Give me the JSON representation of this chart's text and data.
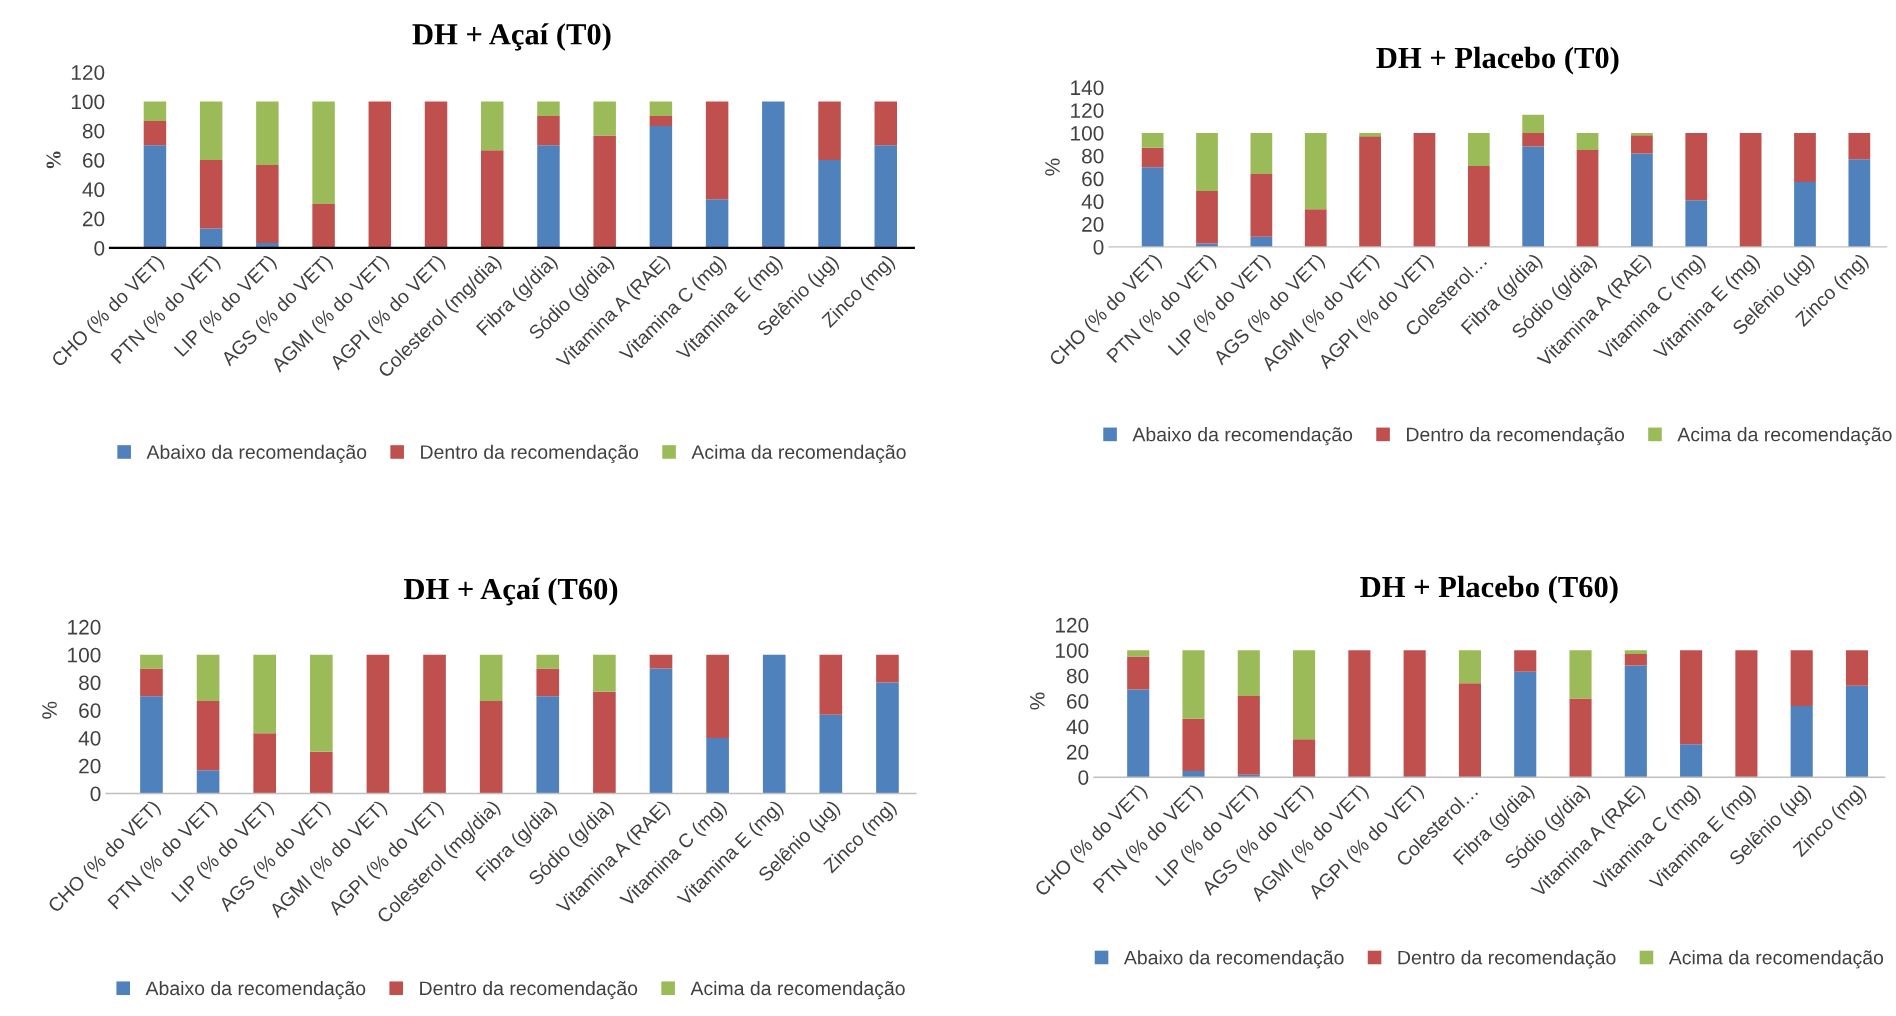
{
  "chart_data": [
    {
      "type": "bar",
      "stacked": true,
      "title": "DH + Açaí (T0)",
      "ylabel": "%",
      "legend": "bottom",
      "grid": false,
      "ylim": [
        0,
        120
      ],
      "yticks": [
        0,
        20,
        40,
        60,
        80,
        100,
        120
      ],
      "categories": [
        "CHO (% do VET)",
        "PTN (% do VET)",
        "LIP (% do VET)",
        "AGS (% do VET)",
        "AGMI (% do VET)",
        "AGPI (% do VET)",
        "Colesterol (mg/dia)",
        "Fibra (g/dia)",
        "Sódio (g/dia)",
        "Vitamina A (RAE)",
        "Vitamina C (mg)",
        "Vitamina E (mg)",
        "Selênio (µg)",
        "Zinco (mg)"
      ],
      "series": [
        {
          "name": "Abaixo da recomendação",
          "color": "#4f81bd",
          "values": [
            70,
            13.3,
            3.3,
            0,
            0,
            0,
            0,
            70,
            0,
            83.3,
            33.3,
            100,
            60,
            70
          ]
        },
        {
          "name": "Dentro da recomendação",
          "color": "#c0504d",
          "values": [
            16.7,
            46.7,
            53.3,
            30,
            100,
            100,
            66.7,
            20,
            76.7,
            6.7,
            66.7,
            0,
            40,
            30
          ]
        },
        {
          "name": "Acima da recomendação",
          "color": "#9bbb59",
          "values": [
            13.3,
            40,
            43.3,
            70,
            0,
            0,
            33.3,
            10,
            23.3,
            10,
            0,
            0,
            0,
            0
          ]
        }
      ]
    },
    {
      "type": "bar",
      "stacked": true,
      "title": "DH + Placebo (T0)",
      "ylabel": "%",
      "legend": "bottom",
      "grid": false,
      "ylim": [
        0,
        140
      ],
      "yticks": [
        0,
        20,
        40,
        60,
        80,
        100,
        120,
        140
      ],
      "categories": [
        "CHO (% do VET)",
        "PTN (% do VET)",
        "LIP (% do VET)",
        "AGS (% do VET)",
        "AGMI (% do VET)",
        "AGPI (% do VET)",
        "Colesterol…",
        "Fibra (g/dia)",
        "Sódio (g/dia)",
        "Vitamina A (RAE)",
        "Vitamina C (mg)",
        "Vitamina E (mg)",
        "Selênio (µg)",
        "Zinco (mg)"
      ],
      "series": [
        {
          "name": "Abaixo da recomendação",
          "color": "#4f81bd",
          "values": [
            70,
            3,
            9,
            0,
            0,
            0,
            0,
            88,
            0,
            82,
            41,
            0,
            57,
            77
          ]
        },
        {
          "name": "Dentro da recomendação",
          "color": "#c0504d",
          "values": [
            17,
            46,
            55,
            33,
            97,
            100,
            71,
            12,
            85,
            16,
            59,
            100,
            43,
            23
          ]
        },
        {
          "name": "Acima da recomendação",
          "color": "#9bbb59",
          "values": [
            13,
            51,
            36,
            67,
            3,
            0,
            29,
            16,
            15,
            2,
            0,
            0,
            0,
            0
          ]
        }
      ]
    },
    {
      "type": "bar",
      "stacked": true,
      "title": "DH + Açaí (T60)",
      "ylabel": "%",
      "legend": "bottom",
      "grid": false,
      "ylim": [
        0,
        120
      ],
      "yticks": [
        0,
        20,
        40,
        60,
        80,
        100,
        120
      ],
      "categories": [
        "CHO (% do VET)",
        "PTN (% do VET)",
        "LIP (% do VET)",
        "AGS (% do VET)",
        "AGMI (% do VET)",
        "AGPI (% do VET)",
        "Colesterol (mg/dia)",
        "Fibra (g/dia)",
        "Sódio (g/dia)",
        "Vitamina A (RAE)",
        "Vitamina C (mg)",
        "Vitamina E (mg)",
        "Selênio (µg)",
        "Zinco (mg)"
      ],
      "series": [
        {
          "name": "Abaixo da recomendação",
          "color": "#4f81bd",
          "values": [
            70,
            16.7,
            0,
            0,
            0,
            0,
            0,
            70,
            0,
            90,
            40,
            100,
            56.7,
            80
          ]
        },
        {
          "name": "Dentro da recomendação",
          "color": "#c0504d",
          "values": [
            20,
            50,
            43.3,
            30,
            100,
            100,
            66.7,
            20,
            73.3,
            10,
            60,
            0,
            43.3,
            20
          ]
        },
        {
          "name": "Acima da recomendação",
          "color": "#9bbb59",
          "values": [
            10,
            33.3,
            56.7,
            70,
            0,
            0,
            33.3,
            10,
            26.7,
            0,
            0,
            0,
            0,
            0
          ]
        }
      ]
    },
    {
      "type": "bar",
      "stacked": true,
      "title": "DH + Placebo (T60)",
      "ylabel": "%",
      "legend": "bottom",
      "grid": false,
      "ylim": [
        0,
        120
      ],
      "yticks": [
        0,
        20,
        40,
        60,
        80,
        100,
        120
      ],
      "categories": [
        "CHO (% do VET)",
        "PTN (% do VET)",
        "LIP (% do VET)",
        "AGS (% do VET)",
        "AGMI (% do VET)",
        "AGPI (% do VET)",
        "Colesterol…",
        "Fibra (g/dia)",
        "Sódio (g/dia)",
        "Vitamina A (RAE)",
        "Vitamina C (mg)",
        "Vitamina E (mg)",
        "Selênio (µg)",
        "Zinco (mg)"
      ],
      "series": [
        {
          "name": "Abaixo da recomendação",
          "color": "#4f81bd",
          "values": [
            69,
            5,
            2,
            0,
            0,
            0,
            0,
            83,
            0,
            88,
            26,
            0,
            56,
            72
          ]
        },
        {
          "name": "Dentro da recomendação",
          "color": "#c0504d",
          "values": [
            26,
            41,
            62,
            30,
            100,
            100,
            74,
            17,
            62,
            9,
            74,
            100,
            44,
            28
          ]
        },
        {
          "name": "Acima da recomendação",
          "color": "#9bbb59",
          "values": [
            5,
            54,
            36,
            70,
            0,
            0,
            26,
            0,
            38,
            3,
            0,
            0,
            0,
            0
          ]
        }
      ]
    }
  ]
}
